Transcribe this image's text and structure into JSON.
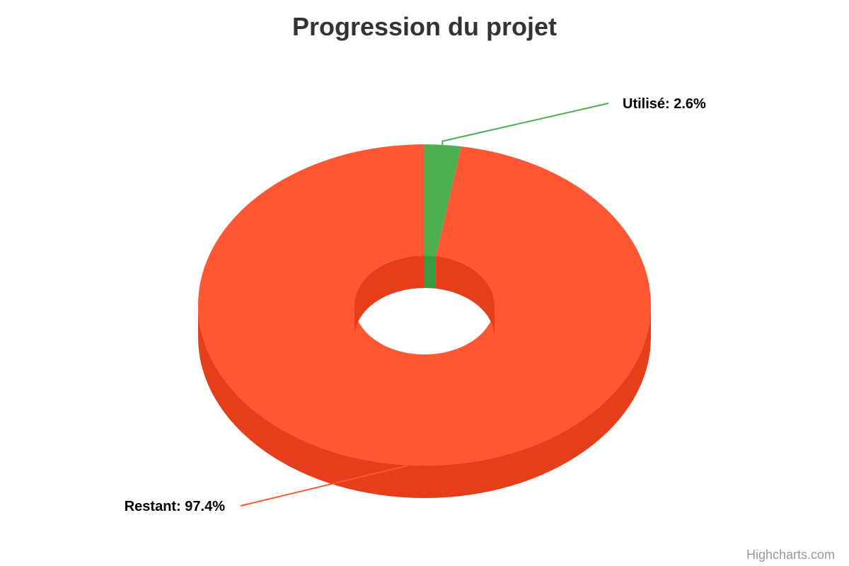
{
  "chart_data": {
    "type": "pie",
    "variant": "3d-donut",
    "title": "Progression du projet",
    "slices": [
      {
        "name": "Utilisé",
        "value": 2.6,
        "color": "#4caf50",
        "side_color": "#3a9b3e",
        "label": "Utilisé: 2.6%"
      },
      {
        "name": "Restant",
        "value": 97.4,
        "color": "#ff5733",
        "side_color": "#e53e1b",
        "label": "Restant: 97.4%"
      }
    ],
    "start_angle_deg": 0,
    "legend": "none"
  },
  "credits": {
    "text": "Highcharts.com"
  }
}
